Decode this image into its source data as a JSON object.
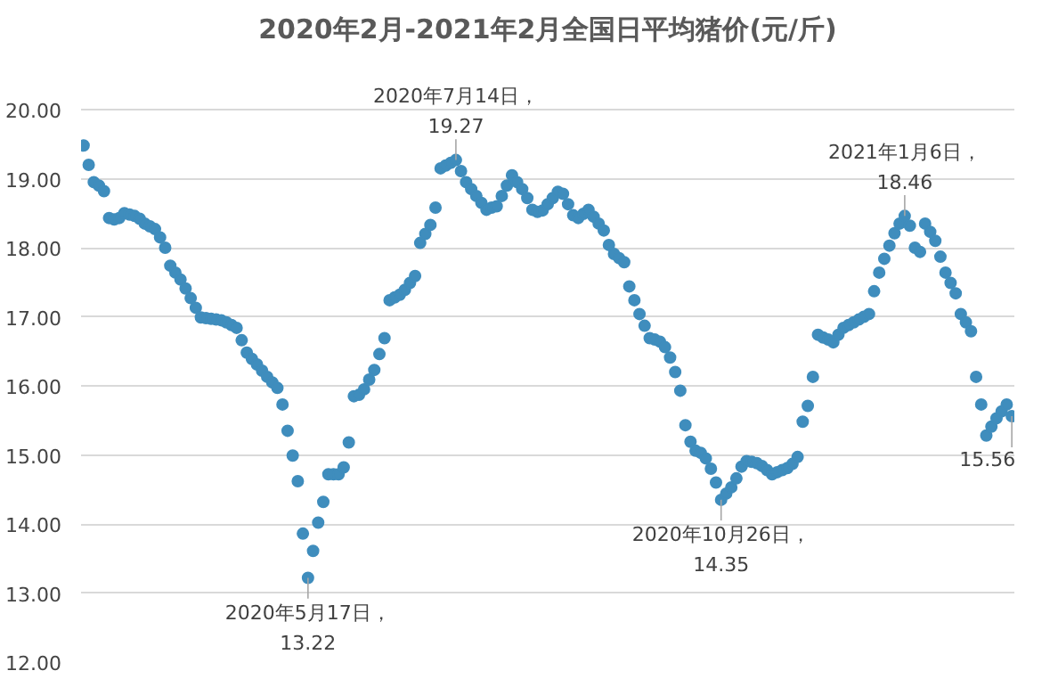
{
  "chart_data": {
    "type": "scatter",
    "title": "2020年2月-2021年2月全国日平均猪价(元/斤)",
    "categories": [
      null,
      null,
      null,
      null,
      null,
      null,
      null,
      null,
      null,
      null,
      null,
      null,
      null,
      null,
      null,
      null,
      null,
      null,
      null,
      null,
      null,
      null,
      null,
      null,
      null,
      null,
      null,
      null,
      null,
      null,
      null,
      null,
      null,
      null,
      null,
      null,
      null,
      null,
      null,
      null,
      null,
      null,
      null,
      null,
      null,
      null,
      null,
      null,
      null,
      null,
      null,
      null,
      null,
      null,
      null,
      null,
      null,
      null,
      null,
      null,
      null,
      null,
      null,
      null,
      null,
      null,
      null,
      null,
      null,
      null,
      null,
      null,
      null,
      null,
      null,
      null,
      null,
      null,
      null,
      null,
      null,
      null,
      null,
      null,
      null,
      null,
      null,
      null,
      null,
      null,
      null,
      null,
      null,
      null,
      null,
      null,
      null,
      null,
      null,
      null,
      null,
      null,
      null,
      null,
      null,
      null,
      null,
      null,
      null,
      null,
      null,
      null,
      null,
      null,
      null,
      null,
      null,
      null,
      null,
      null,
      null,
      null,
      null,
      null,
      null,
      null,
      null,
      null,
      null,
      null,
      null,
      null,
      null,
      null,
      null,
      null,
      null,
      null,
      null,
      null,
      null,
      null,
      null,
      null,
      null,
      null,
      null,
      null,
      null,
      null,
      null,
      null,
      null,
      null,
      null,
      null,
      null,
      null,
      null,
      null,
      null,
      null,
      null,
      null,
      null,
      null,
      null,
      null,
      null,
      null,
      null,
      null,
      null,
      null,
      null,
      null,
      null,
      null,
      null,
      null,
      null,
      null,
      null
    ],
    "values": [
      19.48,
      19.2,
      18.95,
      18.9,
      18.82,
      18.43,
      18.41,
      18.43,
      18.5,
      18.48,
      18.46,
      18.42,
      18.35,
      18.31,
      18.27,
      18.15,
      18.0,
      17.74,
      17.64,
      17.54,
      17.41,
      17.27,
      17.13,
      16.99,
      16.98,
      16.97,
      16.96,
      16.95,
      16.92,
      16.88,
      16.84,
      16.66,
      16.48,
      16.39,
      16.31,
      16.22,
      16.13,
      16.05,
      15.97,
      15.73,
      15.35,
      14.99,
      14.62,
      13.86,
      13.22,
      13.61,
      14.02,
      14.32,
      14.72,
      14.72,
      14.72,
      14.82,
      15.18,
      15.85,
      15.87,
      15.95,
      16.09,
      16.23,
      16.46,
      16.69,
      17.24,
      17.28,
      17.32,
      17.39,
      17.49,
      17.59,
      18.07,
      18.2,
      18.33,
      18.58,
      19.15,
      19.19,
      19.23,
      19.27,
      19.11,
      18.95,
      18.85,
      18.75,
      18.65,
      18.55,
      18.58,
      18.6,
      18.75,
      18.9,
      19.05,
      18.95,
      18.85,
      18.72,
      18.55,
      18.52,
      18.54,
      18.63,
      18.72,
      18.81,
      18.78,
      18.63,
      18.47,
      18.43,
      18.49,
      18.55,
      18.45,
      18.35,
      18.25,
      18.04,
      17.91,
      17.85,
      17.79,
      17.44,
      17.24,
      17.04,
      16.87,
      16.69,
      16.67,
      16.64,
      16.56,
      16.41,
      16.2,
      15.93,
      15.43,
      15.19,
      15.06,
      15.03,
      14.95,
      14.8,
      14.6,
      14.35,
      14.44,
      14.53,
      14.66,
      14.83,
      14.91,
      14.9,
      14.88,
      14.84,
      14.78,
      14.72,
      14.75,
      14.78,
      14.81,
      14.87,
      14.97,
      15.48,
      15.71,
      16.13,
      16.74,
      16.7,
      16.67,
      16.63,
      16.74,
      16.84,
      16.88,
      16.92,
      16.96,
      17.0,
      17.04,
      17.37,
      17.64,
      17.84,
      18.03,
      18.21,
      18.35,
      18.46,
      18.32,
      18.0,
      17.94,
      18.35,
      18.23,
      18.1,
      17.87,
      17.64,
      17.49,
      17.34,
      17.04,
      16.92,
      16.79,
      16.13,
      15.73,
      15.28,
      15.41,
      15.53,
      15.63,
      15.73,
      15.56
    ],
    "color": "#3f8dbd",
    "marker": "circle",
    "ylim": [
      12,
      20
    ],
    "yticks": [
      {
        "value": 12,
        "label": "12.00"
      },
      {
        "value": 13,
        "label": "13.00"
      },
      {
        "value": 14,
        "label": "14.00"
      },
      {
        "value": 15,
        "label": "15.00"
      },
      {
        "value": 16,
        "label": "16.00"
      },
      {
        "value": 17,
        "label": "17.00"
      },
      {
        "value": 18,
        "label": "18.00"
      },
      {
        "value": 19,
        "label": "19.00"
      },
      {
        "value": 20,
        "label": "20.00"
      }
    ],
    "grid": "y",
    "tick_labels": "y",
    "annotations": [
      {
        "text": "2020年5月17日，\n13.22",
        "y": 13.22
      },
      {
        "text": "2020年7月14日，\n19.27",
        "y": 19.27
      },
      {
        "text": "2020年10月26日，\n14.35",
        "y": 14.35
      },
      {
        "text": "2021年1月6日，\n18.46",
        "y": 18.46
      },
      {
        "text": "15.56",
        "y": 15.56
      }
    ]
  }
}
